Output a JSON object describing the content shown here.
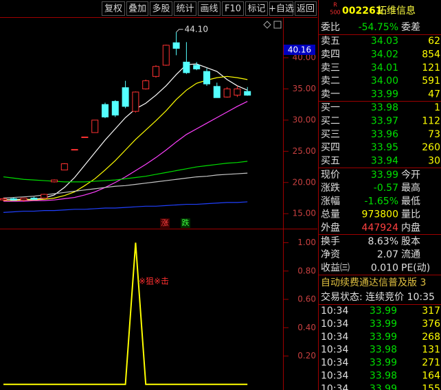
{
  "toolbar": {
    "buttons": [
      "复权",
      "叠加",
      "多股",
      "统计",
      "画线",
      "F10",
      "标记",
      "+自选",
      "返回"
    ]
  },
  "quote": {
    "logo_top": "R",
    "logo_bottom": "500",
    "code": "002261",
    "name": "拓维信息",
    "ratio_label": "委比",
    "ratio": "-54.75%",
    "diff_label": "委差",
    "asks": [
      {
        "label": "卖五",
        "price": "34.03",
        "volume": "62"
      },
      {
        "label": "卖四",
        "price": "34.02",
        "volume": "854"
      },
      {
        "label": "卖三",
        "price": "34.01",
        "volume": "121"
      },
      {
        "label": "卖二",
        "price": "34.00",
        "volume": "591"
      },
      {
        "label": "卖一",
        "price": "33.99",
        "volume": "47"
      }
    ],
    "bids": [
      {
        "label": "买一",
        "price": "33.98",
        "volume": "1"
      },
      {
        "label": "买二",
        "price": "33.97",
        "volume": "112"
      },
      {
        "label": "买三",
        "price": "33.96",
        "volume": "73"
      },
      {
        "label": "买四",
        "price": "33.95",
        "volume": "260"
      },
      {
        "label": "买五",
        "price": "33.94",
        "volume": "30"
      }
    ],
    "stats": [
      {
        "label": "现价",
        "value": "33.99",
        "label2": "今开"
      },
      {
        "label": "涨跌",
        "value": "-0.57",
        "label2": "最高"
      },
      {
        "label": "涨幅",
        "value": "-1.65%",
        "label2": "最低"
      },
      {
        "label": "总量",
        "value": "973800",
        "label2": "量比"
      },
      {
        "label": "外盘",
        "value": "447924",
        "label2": "内盘"
      }
    ],
    "stats2": [
      {
        "label": "换手",
        "value": "8.63%",
        "label2": "股本"
      },
      {
        "label": "净资",
        "value": "2.07",
        "label2": "流通"
      },
      {
        "label": "收益㈢",
        "value": "0.010",
        "label2": "PE(动)"
      }
    ],
    "notice": "自动续费通达信普及版 3",
    "status": "交易状态: 连续竞价 10:35",
    "ticks": [
      {
        "time": "10:34",
        "price": "33.99",
        "volume": "317"
      },
      {
        "time": "10:34",
        "price": "33.99",
        "volume": "376"
      },
      {
        "time": "10:34",
        "price": "33.99",
        "volume": "268"
      },
      {
        "time": "10:34",
        "price": "33.98",
        "volume": "131"
      },
      {
        "time": "10:34",
        "price": "33.99",
        "volume": "271"
      },
      {
        "time": "10:34",
        "price": "33.98",
        "volume": "164"
      },
      {
        "time": "10:34",
        "price": "33.99",
        "volume": "155"
      }
    ]
  },
  "chart_data": [
    {
      "type": "candlestick",
      "up_color": "#ff3232",
      "down_color": "#54ffff",
      "open": [
        17.2,
        17.4,
        17.2,
        17.5,
        17.5,
        20.1,
        22.0,
        25.3,
        27.3,
        28.0,
        32.5,
        33.0,
        35.2,
        31.4,
        35.0,
        37.0,
        38.8,
        42.4,
        39.3,
        38.8,
        37.8,
        35.4,
        33.7,
        34.0,
        34.6
      ],
      "high": [
        17.6,
        17.6,
        17.5,
        17.7,
        18.2,
        20.5,
        23.1,
        25.3,
        27.3,
        30.0,
        32.8,
        33.2,
        36.3,
        34.6,
        36.5,
        38.8,
        42.1,
        44.1,
        42.5,
        39.3,
        38.3,
        36.0,
        35.3,
        35.5,
        35.3
      ],
      "low": [
        17.0,
        17.1,
        16.9,
        17.2,
        17.4,
        20.0,
        22.0,
        25.3,
        27.3,
        28.0,
        30.3,
        30.5,
        31.9,
        31.2,
        34.9,
        36.8,
        38.7,
        40.4,
        37.4,
        38.0,
        35.5,
        33.6,
        33.6,
        33.7,
        33.9
      ],
      "close": [
        17.4,
        17.2,
        17.5,
        17.3,
        18.1,
        20.4,
        23.0,
        25.3,
        27.3,
        30.0,
        30.5,
        30.8,
        32.2,
        34.5,
        36.3,
        38.6,
        42.0,
        41.5,
        37.6,
        38.2,
        35.8,
        33.6,
        35.0,
        35.0,
        33.99
      ],
      "series": [
        {
          "color": "#ffffff",
          "values": [
            17.3,
            17.3,
            17.3,
            17.3,
            17.5,
            18.0,
            19.2,
            20.8,
            22.8,
            24.8,
            26.8,
            28.6,
            30.4,
            31.8,
            32.7,
            34.0,
            35.5,
            37.3,
            38.9,
            39.0,
            38.4,
            37.8,
            36.5,
            35.5,
            34.8
          ]
        },
        {
          "color": "#ffff00",
          "values": [
            17.1,
            17.1,
            17.2,
            17.2,
            17.3,
            17.5,
            17.9,
            18.5,
            19.5,
            20.6,
            22.0,
            23.5,
            25.2,
            26.9,
            28.4,
            29.9,
            31.5,
            33.3,
            34.8,
            35.9,
            36.4,
            36.8,
            37.0,
            36.8,
            36.5
          ]
        },
        {
          "color": "#ff40ff",
          "values": [
            17.0,
            17.0,
            17.0,
            17.1,
            17.1,
            17.2,
            17.4,
            17.6,
            18.0,
            18.5,
            19.2,
            20.0,
            20.9,
            21.9,
            22.9,
            24.0,
            25.2,
            26.5,
            27.7,
            28.6,
            29.5,
            30.4,
            31.3,
            32.2,
            33.0
          ]
        },
        {
          "color": "#00e000",
          "values": [
            20.9,
            20.7,
            20.5,
            20.4,
            20.3,
            20.2,
            20.1,
            20.1,
            20.1,
            20.2,
            20.3,
            20.4,
            20.6,
            20.8,
            21.0,
            21.3,
            21.6,
            21.9,
            22.2,
            22.5,
            22.7,
            22.9,
            23.1,
            23.2,
            23.4
          ]
        },
        {
          "color": "#c8c8c8",
          "values": [
            17.5,
            17.6,
            17.7,
            17.8,
            18.0,
            18.2,
            18.4,
            18.6,
            18.8,
            19.0,
            19.2,
            19.4,
            19.5,
            19.7,
            19.9,
            20.1,
            20.3,
            20.5,
            20.7,
            20.9,
            21.0,
            21.2,
            21.3,
            21.4,
            21.5
          ]
        },
        {
          "color": "#2040ff",
          "values": [
            15.2,
            15.3,
            15.4,
            15.4,
            15.5,
            15.5,
            15.6,
            15.7,
            15.7,
            15.8,
            15.9,
            15.9,
            16.0,
            16.1,
            16.2,
            16.2,
            16.3,
            16.4,
            16.5,
            16.5,
            16.6,
            16.7,
            16.8,
            16.8,
            16.9
          ]
        }
      ],
      "ylim": [
        12.6,
        46.5
      ],
      "yticks": [
        {
          "value": 15,
          "label": "15.00"
        },
        {
          "value": 20,
          "label": "20.00"
        },
        {
          "value": 25,
          "label": "25.00"
        },
        {
          "value": 30,
          "label": "30.00"
        },
        {
          "value": 35,
          "label": "35.00"
        },
        {
          "value": 40,
          "label": "40.00"
        }
      ],
      "high_label": "44.10",
      "last_label": "40.16",
      "up_mark": "涨",
      "down_mark": "跌"
    },
    {
      "type": "line",
      "annotation": "※狙※击",
      "color": "#ffff00",
      "values": [
        0,
        0,
        0,
        0,
        0,
        0,
        0,
        0,
        0,
        0,
        0,
        0,
        0,
        1,
        0,
        0,
        0,
        0,
        0,
        0,
        0,
        0,
        0,
        0,
        0
      ],
      "ylim": [
        -0.04,
        1.08
      ],
      "yticks": [
        {
          "value": 0.2,
          "label": "0.20"
        },
        {
          "value": 0.4,
          "label": "0.40"
        },
        {
          "value": 0.6,
          "label": "0.60"
        },
        {
          "value": 0.8,
          "label": "0.80"
        },
        {
          "value": 1,
          "label": "1.00"
        }
      ]
    }
  ]
}
